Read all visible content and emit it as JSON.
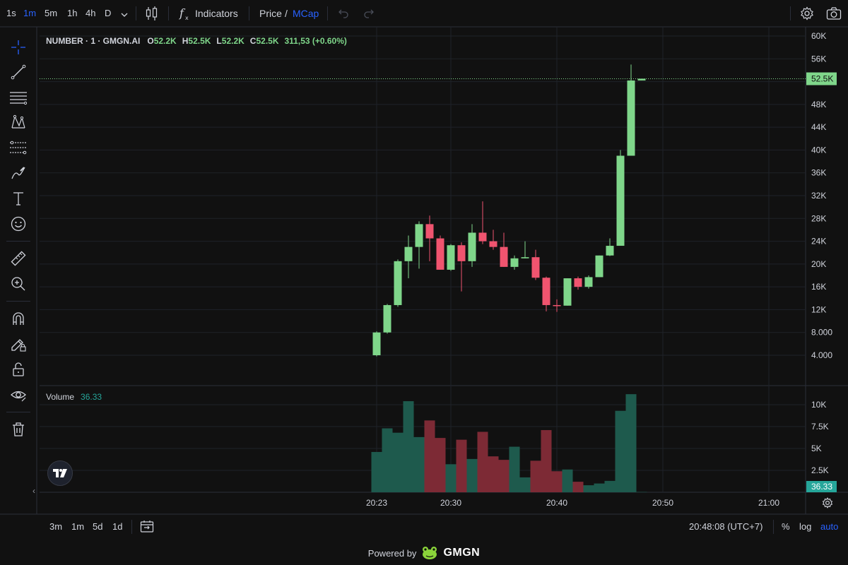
{
  "toolbar": {
    "timeframes": [
      "1s",
      "1m",
      "5m",
      "1h",
      "4h",
      "D"
    ],
    "active_timeframe": "1m",
    "indicators_label": "Indicators",
    "price_label": "Price",
    "slash": "/",
    "mcap_label": "MCap"
  },
  "legend": {
    "symbol": "NUMBER · 1 · GMGN.AI",
    "open_key": "O",
    "open": "52.2K",
    "high_key": "H",
    "high": "52.5K",
    "low_key": "L",
    "low": "52.2K",
    "close_key": "C",
    "close": "52.5K",
    "change": "311,53 (+0.60%)"
  },
  "volume_legend": {
    "label": "Volume",
    "value": "36.33"
  },
  "bottom": {
    "ranges": [
      "3m",
      "1m",
      "5d",
      "1d"
    ],
    "clock": "20:48:08 (UTC+7)",
    "percent_label": "%",
    "log_label": "log",
    "auto_label": "auto"
  },
  "footer": {
    "powered_by": "Powered by",
    "brand": "GMGN"
  },
  "colors": {
    "up": "#7fd68a",
    "down": "#f0546f",
    "vol_up": "#1e5a4d",
    "vol_down": "#7d2a35",
    "price_tag": "#7fd68a",
    "vol_tag": "#26a69a",
    "accent": "#2962ff"
  },
  "chart_data": {
    "type": "candlestick",
    "price_axis": {
      "ticks": [
        60000,
        56000,
        52000,
        48000,
        44000,
        40000,
        36000,
        32000,
        28000,
        24000,
        20000,
        16000,
        12000,
        8000,
        4000
      ],
      "tick_labels": [
        "60K",
        "56K",
        "52K",
        "48K",
        "44K",
        "40K",
        "36K",
        "32K",
        "28K",
        "24K",
        "20K",
        "16K",
        "12K",
        "8.000",
        "4.000"
      ],
      "last_price": 52500,
      "last_price_label": "52.5K"
    },
    "volume_axis": {
      "ticks": [
        10000,
        7500,
        5000,
        2500
      ],
      "tick_labels": [
        "10K",
        "7.5K",
        "5K",
        "2.5K"
      ],
      "last_volume": 36.33,
      "last_volume_label": "36.33"
    },
    "time_axis": {
      "ticks": [
        "20:23",
        "20:30",
        "20:40",
        "20:50",
        "21:00"
      ],
      "tick_minutes": [
        23,
        30,
        40,
        50,
        60
      ]
    },
    "candles": [
      {
        "t": 23,
        "o": 4000,
        "h": 8200,
        "l": 3800,
        "c": 8000,
        "v": 4600
      },
      {
        "t": 24,
        "o": 8000,
        "h": 13000,
        "l": 7800,
        "c": 12800,
        "v": 7300
      },
      {
        "t": 25,
        "o": 12800,
        "h": 20800,
        "l": 12500,
        "c": 20500,
        "v": 6800
      },
      {
        "t": 26,
        "o": 20500,
        "h": 25000,
        "l": 17500,
        "c": 23000,
        "v": 10400
      },
      {
        "t": 27,
        "o": 23000,
        "h": 27500,
        "l": 19200,
        "c": 27000,
        "v": 6300
      },
      {
        "t": 28,
        "o": 27000,
        "h": 28500,
        "l": 20500,
        "c": 24500,
        "v": 8200
      },
      {
        "t": 29,
        "o": 24500,
        "h": 25000,
        "l": 19000,
        "c": 19000,
        "v": 6200
      },
      {
        "t": 30,
        "o": 19000,
        "h": 23500,
        "l": 18800,
        "c": 23300,
        "v": 3200
      },
      {
        "t": 31,
        "o": 23300,
        "h": 23800,
        "l": 15200,
        "c": 20500,
        "v": 6000
      },
      {
        "t": 32,
        "o": 20500,
        "h": 27000,
        "l": 19500,
        "c": 25500,
        "v": 3800
      },
      {
        "t": 33,
        "o": 25500,
        "h": 31000,
        "l": 23500,
        "c": 24000,
        "v": 6900
      },
      {
        "t": 34,
        "o": 24000,
        "h": 26000,
        "l": 22500,
        "c": 23000,
        "v": 4100
      },
      {
        "t": 35,
        "o": 23000,
        "h": 25500,
        "l": 19500,
        "c": 19500,
        "v": 3700
      },
      {
        "t": 36,
        "o": 19500,
        "h": 21500,
        "l": 19000,
        "c": 21000,
        "v": 5200
      },
      {
        "t": 37,
        "o": 21000,
        "h": 24000,
        "l": 21000,
        "c": 21200,
        "v": 1700
      },
      {
        "t": 38,
        "o": 21200,
        "h": 22500,
        "l": 17200,
        "c": 17600,
        "v": 3600
      },
      {
        "t": 39,
        "o": 17600,
        "h": 17800,
        "l": 11700,
        "c": 12800,
        "v": 7100
      },
      {
        "t": 40,
        "o": 12800,
        "h": 13800,
        "l": 11600,
        "c": 12700,
        "v": 2400
      },
      {
        "t": 41,
        "o": 12700,
        "h": 17500,
        "l": 12700,
        "c": 17500,
        "v": 2600
      },
      {
        "t": 42,
        "o": 17500,
        "h": 17800,
        "l": 15500,
        "c": 16000,
        "v": 1200
      },
      {
        "t": 43,
        "o": 16000,
        "h": 18000,
        "l": 15700,
        "c": 17700,
        "v": 800
      },
      {
        "t": 44,
        "o": 17700,
        "h": 21500,
        "l": 17700,
        "c": 21500,
        "v": 1000
      },
      {
        "t": 45,
        "o": 21500,
        "h": 24500,
        "l": 21400,
        "c": 23200,
        "v": 1300
      },
      {
        "t": 46,
        "o": 23200,
        "h": 40000,
        "l": 23200,
        "c": 39000,
        "v": 9300
      },
      {
        "t": 47,
        "o": 39000,
        "h": 55000,
        "l": 39000,
        "c": 52200,
        "v": 11200
      },
      {
        "t": 48,
        "o": 52200,
        "h": 52500,
        "l": 52200,
        "c": 52500,
        "v": 36.33
      }
    ]
  }
}
